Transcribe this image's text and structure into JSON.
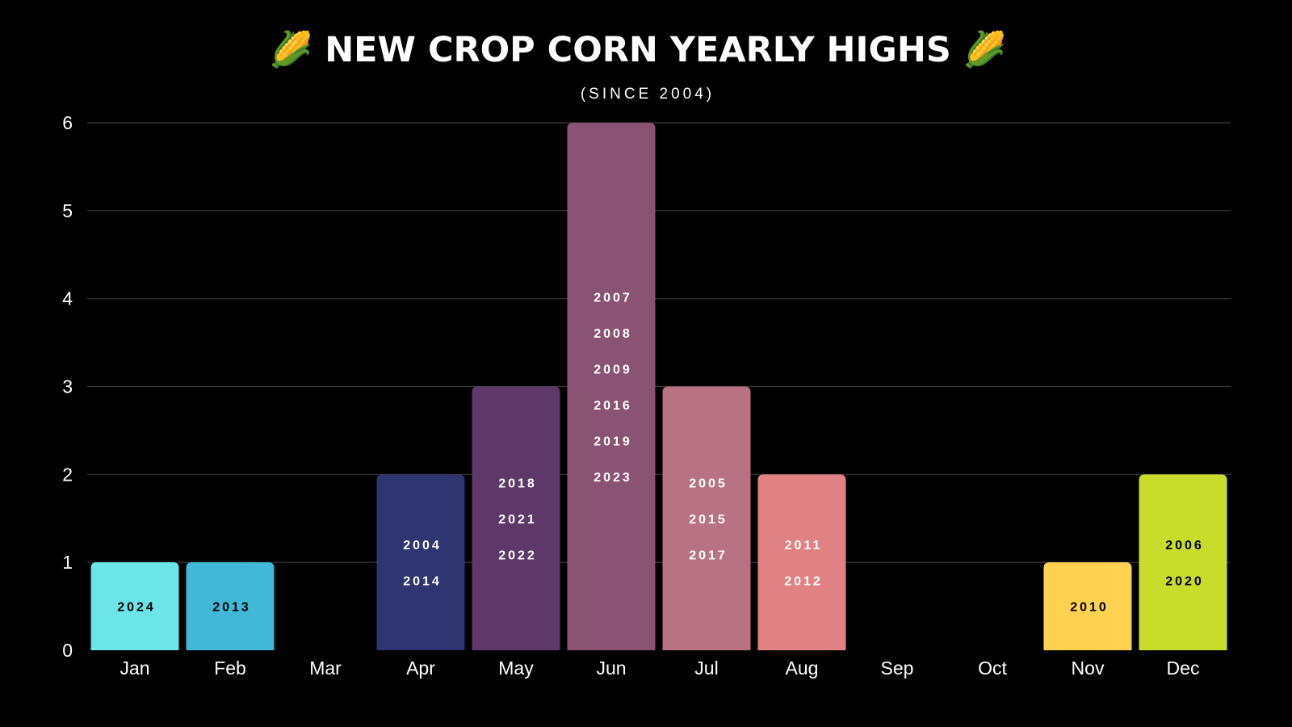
{
  "chart_data": {
    "type": "bar",
    "title": "🌽 NEW CROP CORN YEARLY HIGHS 🌽",
    "subtitle": "(SINCE 2004)",
    "categories": [
      "Jan",
      "Feb",
      "Mar",
      "Apr",
      "May",
      "Jun",
      "Jul",
      "Aug",
      "Sep",
      "Oct",
      "Nov",
      "Dec"
    ],
    "values": [
      1,
      1,
      0,
      2,
      3,
      6,
      3,
      2,
      0,
      0,
      1,
      2
    ],
    "labels": [
      [
        "2024"
      ],
      [
        "2013"
      ],
      [],
      [
        "2004",
        "2014"
      ],
      [
        "2018",
        "2021",
        "2022"
      ],
      [
        "2007",
        "2008",
        "2009",
        "2016",
        "2019",
        "2023"
      ],
      [
        "2005",
        "2015",
        "2017"
      ],
      [
        "2011",
        "2012"
      ],
      [],
      [],
      [
        "2010"
      ],
      [
        "2006",
        "2020"
      ]
    ],
    "colors": [
      "#6be5e8",
      "#41b8d5",
      "#000000",
      "#2f3570",
      "#5e3868",
      "#8b5373",
      "#b87283",
      "#e08283",
      "#000000",
      "#000000",
      "#fed150",
      "#c8dd2b"
    ],
    "label_colors": [
      "#000000",
      "#000000",
      "#ffffff",
      "#ffffff",
      "#ffffff",
      "#ffffff",
      "#ffffff",
      "#ffffff",
      "#ffffff",
      "#ffffff",
      "#000000",
      "#000000"
    ],
    "y_ticks": [
      0,
      1,
      2,
      3,
      4,
      5,
      6
    ],
    "ylim": [
      0,
      6
    ],
    "grid": true,
    "legend": "none",
    "xlabel": "",
    "ylabel": ""
  }
}
